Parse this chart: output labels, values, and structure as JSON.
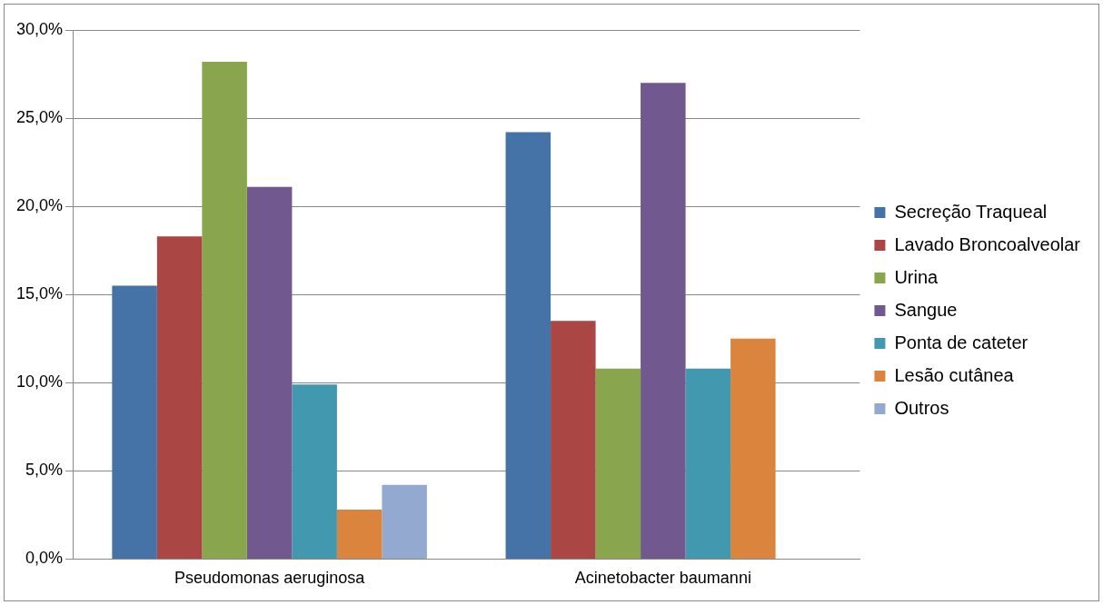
{
  "chart_data": {
    "type": "bar",
    "categories": [
      "Pseudomonas aeruginosa",
      "Acinetobacter baumanni"
    ],
    "series": [
      {
        "name": "Secreção Traqueal",
        "color": "#4572a7",
        "values": [
          15.5,
          24.2
        ]
      },
      {
        "name": "Lavado Broncoalveolar",
        "color": "#aa4643",
        "values": [
          18.3,
          13.5
        ]
      },
      {
        "name": "Urina",
        "color": "#89a54e",
        "values": [
          28.2,
          10.8
        ]
      },
      {
        "name": "Sangue",
        "color": "#71588f",
        "values": [
          21.1,
          27.0
        ]
      },
      {
        "name": "Ponta de cateter",
        "color": "#4198af",
        "values": [
          9.9,
          10.8
        ]
      },
      {
        "name": "Lesão cutânea",
        "color": "#db843d",
        "values": [
          2.8,
          12.5
        ]
      },
      {
        "name": "Outros",
        "color": "#93a9cf",
        "values": [
          4.2,
          null
        ]
      }
    ],
    "ylim": [
      0,
      30
    ],
    "yticks": [
      {
        "value": 0,
        "label": "0,0%"
      },
      {
        "value": 5,
        "label": "5,0%"
      },
      {
        "value": 10,
        "label": "10,0%"
      },
      {
        "value": 15,
        "label": "15,0%"
      },
      {
        "value": 20,
        "label": "20,0%"
      },
      {
        "value": 25,
        "label": "25,0%"
      },
      {
        "value": 30,
        "label": "30,0%"
      }
    ],
    "grid": "y",
    "legend": "right"
  }
}
